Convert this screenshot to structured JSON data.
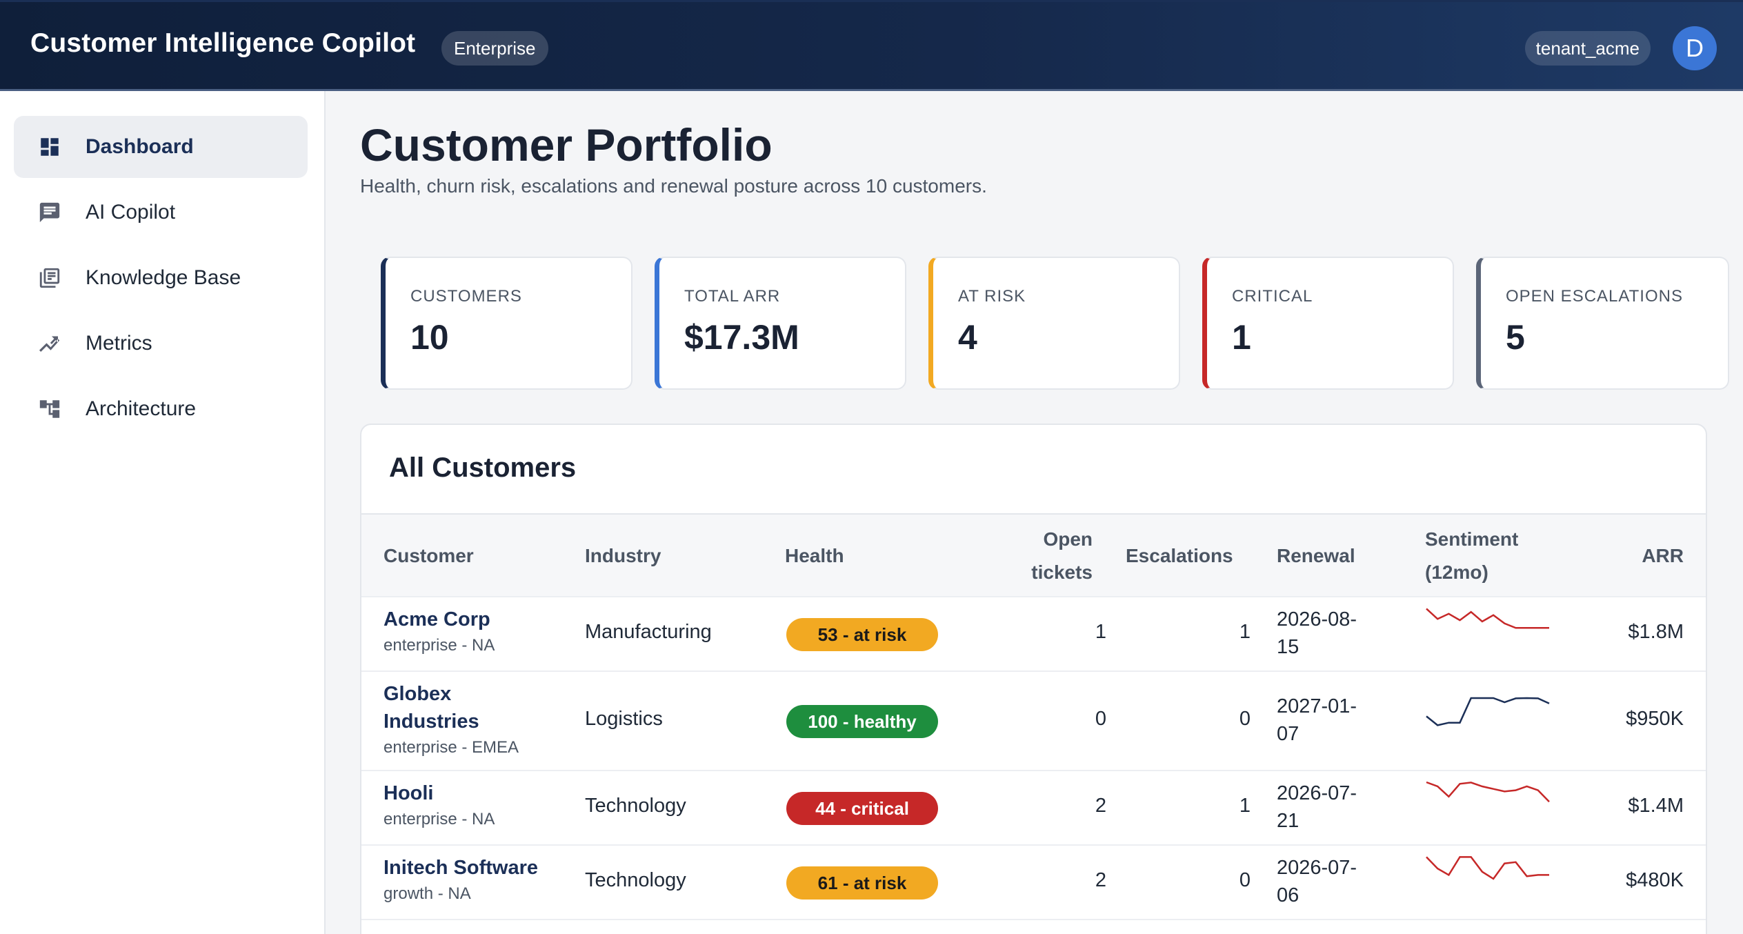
{
  "header": {
    "app_title": "Customer Intelligence Copilot",
    "plan_badge": "Enterprise",
    "tenant": "tenant_acme",
    "avatar_initial": "D"
  },
  "sidebar": {
    "items": [
      {
        "label": "Dashboard",
        "icon": "dashboard-icon",
        "active": true
      },
      {
        "label": "AI Copilot",
        "icon": "chat-icon",
        "active": false
      },
      {
        "label": "Knowledge Base",
        "icon": "library-icon",
        "active": false
      },
      {
        "label": "Metrics",
        "icon": "trend-icon",
        "active": false
      },
      {
        "label": "Architecture",
        "icon": "hierarchy-icon",
        "active": false
      }
    ]
  },
  "page": {
    "title": "Customer Portfolio",
    "subtitle": "Health, churn risk, escalations and renewal posture across 10 customers."
  },
  "stats": [
    {
      "label": "CUSTOMERS",
      "value": "10",
      "accent": "#1b2f57"
    },
    {
      "label": "TOTAL ARR",
      "value": "$17.3M",
      "accent": "#3b76d6"
    },
    {
      "label": "AT RISK",
      "value": "4",
      "accent": "#f2a922"
    },
    {
      "label": "CRITICAL",
      "value": "1",
      "accent": "#c62828"
    },
    {
      "label": "OPEN ESCALATIONS",
      "value": "5",
      "accent": "#5b6578"
    }
  ],
  "table": {
    "title": "All Customers",
    "columns": {
      "customer": "Customer",
      "industry": "Industry",
      "health": "Health",
      "open_tickets_1": "Open",
      "open_tickets_2": "tickets",
      "escalations": "Escalations",
      "renewal": "Renewal",
      "sentiment_1": "Sentiment",
      "sentiment_2": "(12mo)",
      "arr": "ARR"
    },
    "rows": [
      {
        "name": "Acme Corp",
        "meta": "enterprise - NA",
        "industry": "Manufacturing",
        "health": "53 - at risk",
        "health_color": "#f2a922",
        "health_text": "#1a1a1a",
        "open": "1",
        "escalations": "1",
        "renewal_1": "2026-08-",
        "renewal_2": "15",
        "sentiment_color": "#c62828",
        "sentiment": [
          0.78,
          0.62,
          0.7,
          0.6,
          0.73,
          0.58,
          0.68,
          0.55,
          0.48,
          0.48,
          0.48,
          0.48
        ],
        "arr": "$1.8M"
      },
      {
        "name_1": "Globex",
        "name_2": "Industries",
        "meta": "enterprise - EMEA",
        "industry": "Logistics",
        "health": "100 - healthy",
        "health_color": "#1e8e3e",
        "health_text": "#ffffff",
        "open": "0",
        "escalations": "0",
        "renewal_1": "2027-01-",
        "renewal_2": "07",
        "sentiment_color": "#1b2f57",
        "sentiment": [
          0.5,
          0.36,
          0.4,
          0.4,
          0.82,
          0.8,
          0.86,
          0.72,
          0.78,
          0.84,
          0.78,
          0.7
        ],
        "arr": "$950K"
      },
      {
        "name": "Hooli",
        "meta": "enterprise - NA",
        "industry": "Technology",
        "health": "44 - critical",
        "health_color": "#c62828",
        "health_text": "#ffffff",
        "open": "2",
        "escalations": "1",
        "renewal_1": "2026-07-",
        "renewal_2": "21",
        "sentiment_color": "#c62828",
        "sentiment": [
          0.8,
          0.72,
          0.56,
          0.76,
          0.78,
          0.72,
          0.68,
          0.64,
          0.66,
          0.72,
          0.66,
          0.48
        ],
        "arr": "$1.4M"
      },
      {
        "name": "Initech Software",
        "meta": "growth - NA",
        "industry": "Technology",
        "health": "61 - at risk",
        "health_color": "#f2a922",
        "health_text": "#1a1a1a",
        "open": "2",
        "escalations": "0",
        "renewal_1": "2026-07-",
        "renewal_2": "06",
        "sentiment_color": "#c62828",
        "sentiment": [
          0.78,
          0.6,
          0.5,
          0.78,
          0.78,
          0.55,
          0.44,
          0.68,
          0.7,
          0.48,
          0.5,
          0.5
        ],
        "arr": "$480K"
      }
    ]
  }
}
